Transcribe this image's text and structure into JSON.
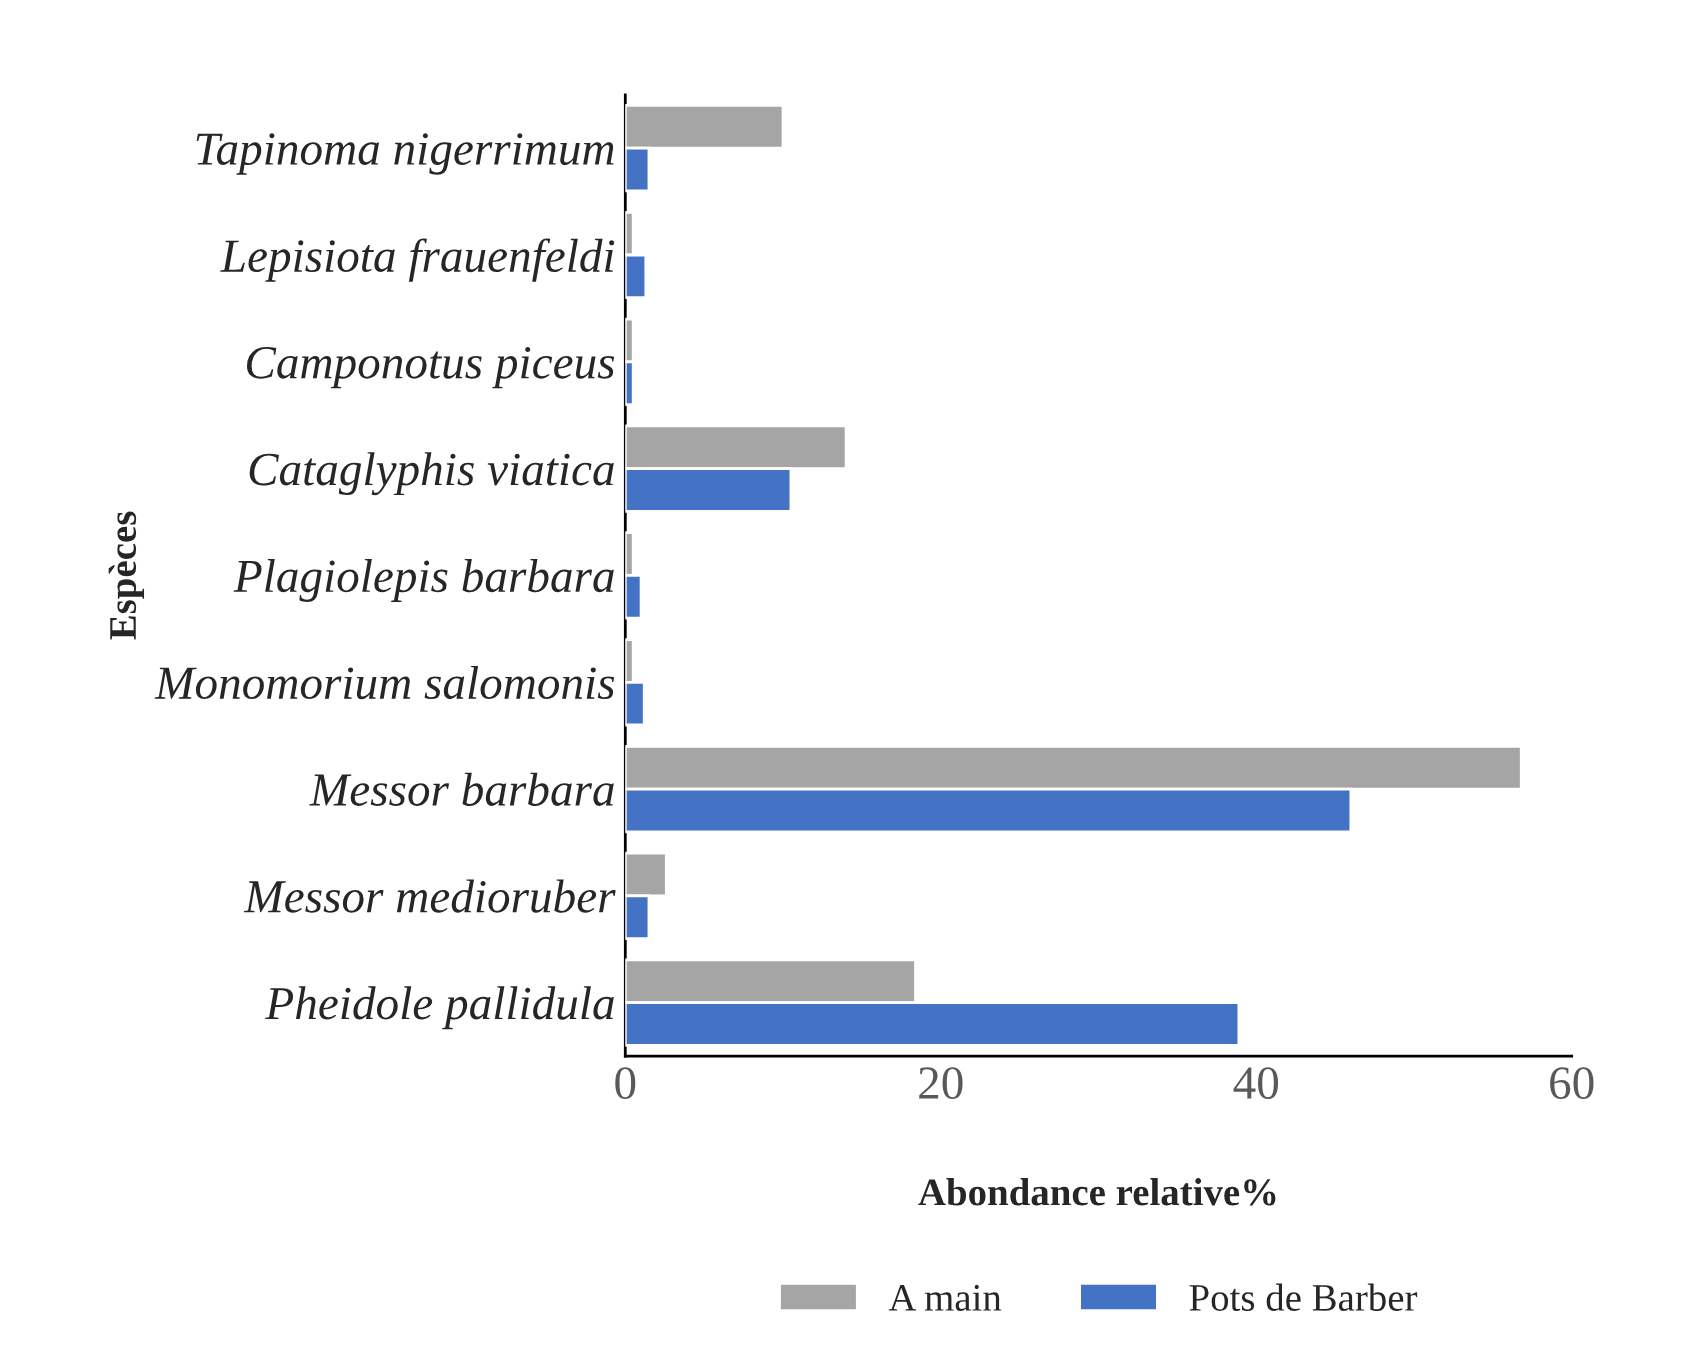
{
  "chart_data": {
    "type": "bar",
    "orientation": "horizontal",
    "xlabel": "Abondance relative%",
    "ylabel": "Espèces",
    "categories": [
      "Tapinoma nigerrimum",
      "Lepisiota frauenfeldi",
      "Camponotus piceus",
      "Cataglyphis viatica",
      "Plagiolepis barbara",
      "Monomorium salomonis",
      "Messor barbara",
      "Messor medioruber",
      "Pheidole pallidula"
    ],
    "series": [
      {
        "name": "A main",
        "color": "#a5a5a5",
        "values": [
          10,
          0.5,
          0.5,
          14,
          0.5,
          0.5,
          56.8,
          2.6,
          18.4
        ]
      },
      {
        "name": "Pots de Barber",
        "color": "#4472c4",
        "values": [
          1.5,
          1.3,
          0.5,
          10.5,
          1,
          1.2,
          46,
          1.5,
          38.9
        ]
      }
    ],
    "xlim": [
      0,
      60
    ],
    "xticks": [
      0,
      20,
      40,
      60
    ],
    "grid": false,
    "legend": "bottom"
  }
}
